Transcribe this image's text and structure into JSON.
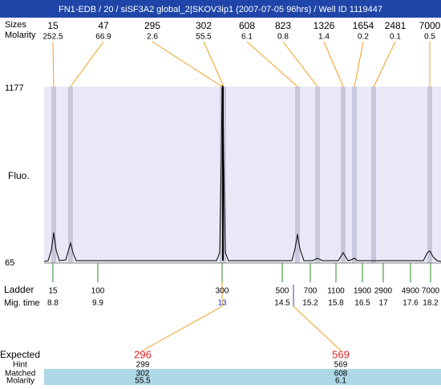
{
  "header": {
    "title": "FN1-EDB / 20 / siSF3A2 global_2|SKOV3ip1 (2007-07-05 96hrs) / Well ID 1119447"
  },
  "peaks": {
    "size_label": "Sizes",
    "molarity_label": "Molarity",
    "sizes": [
      15,
      47,
      295,
      302,
      608,
      823,
      1326,
      1654,
      2481,
      7000
    ],
    "molarities": [
      252.5,
      66.9,
      2.6,
      55.5,
      6.1,
      0.8,
      1.4,
      0.2,
      0.1,
      0.5
    ]
  },
  "plot": {
    "y_label": "Fluo.",
    "y_max": 1177,
    "y_min": 65
  },
  "ladder": {
    "label": "Ladder",
    "time_label": "Mig. time",
    "sizes": [
      15,
      100,
      300,
      500,
      700,
      1100,
      1900,
      2900,
      4900,
      7000
    ],
    "times": [
      8.8,
      9.9,
      13,
      14.5,
      15.2,
      15.8,
      16.5,
      17,
      17.6,
      18.2
    ]
  },
  "expected": {
    "label": "Expected",
    "values": [
      296,
      569
    ],
    "hint_label": "Hint",
    "hints": [
      299,
      569
    ],
    "matched_label": "Matched",
    "matched": [
      302,
      608
    ],
    "molarity_label": "Molarity",
    "molarities": [
      55.5,
      6.1
    ]
  }
}
